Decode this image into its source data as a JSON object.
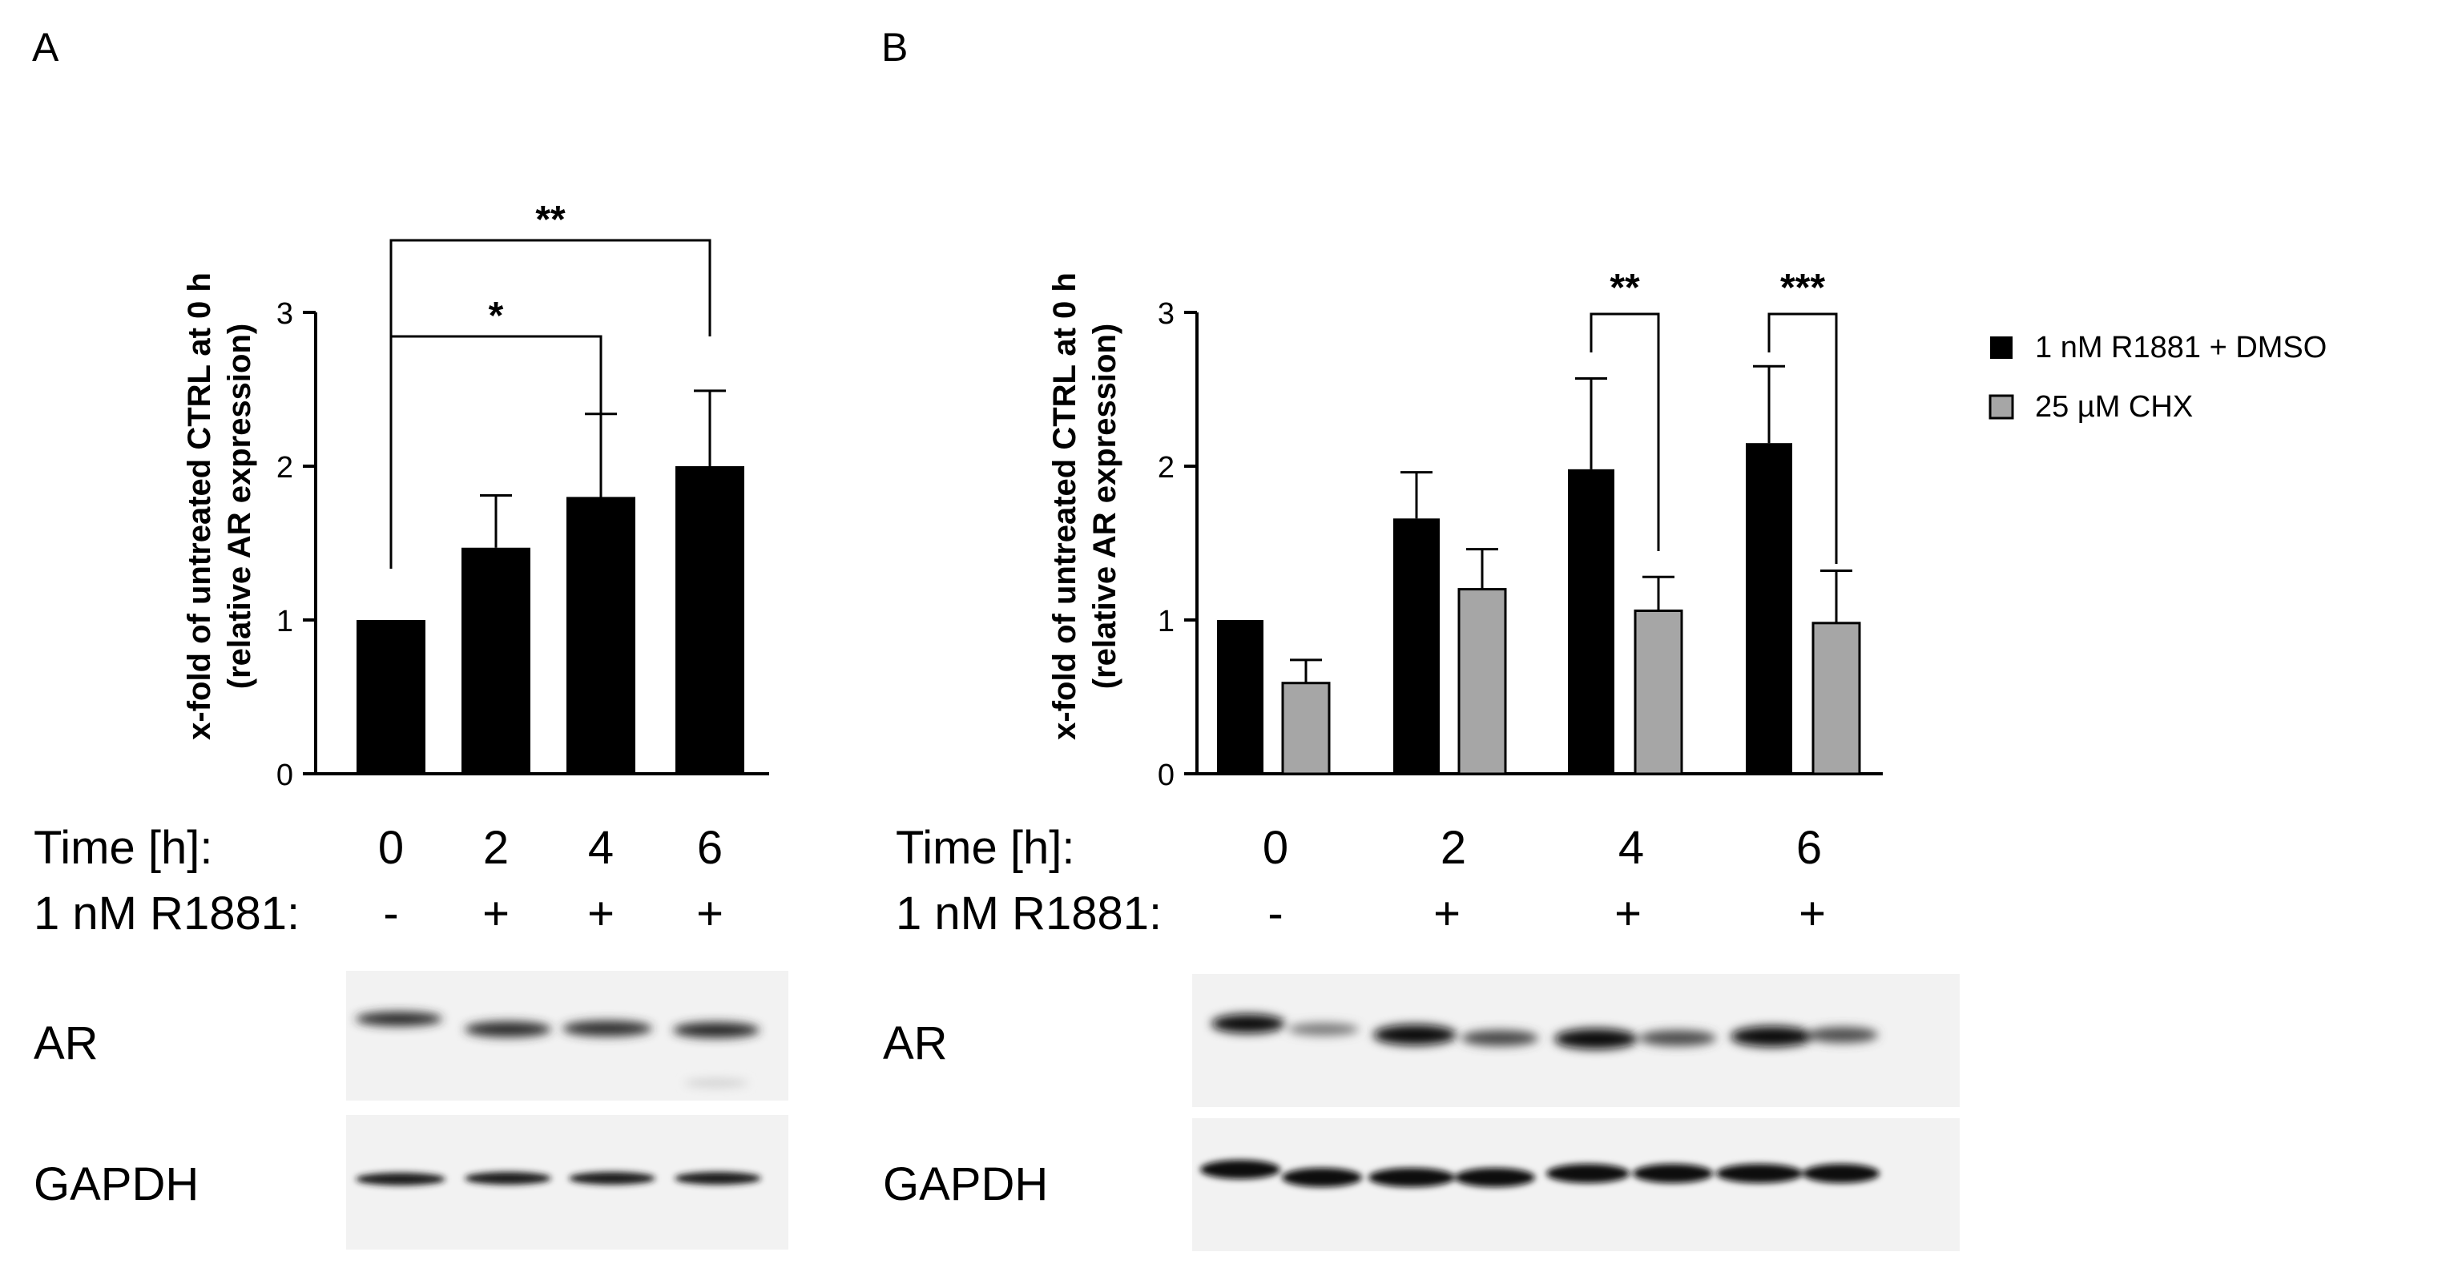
{
  "panel_labels": {
    "a": "A",
    "b": "B"
  },
  "colors": {
    "treated": "#000000",
    "chx": "#a6a6a6",
    "axis": "#000000"
  },
  "chart_data": [
    {
      "panel": "A",
      "type": "bar",
      "ylabel_line1": "x-fold of untreated CTRL at 0 h",
      "ylabel_line2": "(relative AR expression)",
      "ylim": [
        0,
        3
      ],
      "yticks": [
        "0",
        "1",
        "2",
        "3"
      ],
      "categories": [
        "0",
        "2",
        "4",
        "6"
      ],
      "series": [
        {
          "values": [
            1.0,
            1.47,
            1.8,
            2.0
          ],
          "errors": [
            0.0,
            0.34,
            0.54,
            0.49
          ]
        }
      ],
      "brackets": [
        {
          "from": 0,
          "to": 2,
          "label": "*"
        },
        {
          "from": 0,
          "to": 3,
          "label": "**"
        }
      ],
      "row_time_label": "Time [h]:",
      "row_treat_label": "1 nM R1881:",
      "treat_signs": [
        "-",
        "+",
        "+",
        "+"
      ],
      "blots": {
        "ar": "AR",
        "gapdh": "GAPDH"
      }
    },
    {
      "panel": "B",
      "type": "bar",
      "ylabel_line1": "x-fold of untreated CTRL at 0 h",
      "ylabel_line2": "(relative AR expression)",
      "ylim": [
        0,
        3
      ],
      "yticks": [
        "0",
        "1",
        "2",
        "3"
      ],
      "categories": [
        "0",
        "2",
        "4",
        "6"
      ],
      "series": [
        {
          "name": "1 nM R1881 + DMSO",
          "values": [
            1.0,
            1.66,
            1.98,
            2.15
          ],
          "errors": [
            0.0,
            0.3,
            0.59,
            0.5
          ]
        },
        {
          "name": "25 µM CHX",
          "values": [
            0.59,
            1.2,
            1.06,
            0.98
          ],
          "errors": [
            0.15,
            0.26,
            0.22,
            0.34
          ]
        }
      ],
      "brackets": [
        {
          "group": 2,
          "label": "**"
        },
        {
          "group": 3,
          "label": "***"
        }
      ],
      "row_time_label": "Time [h]:",
      "row_treat_label": "1 nM R1881:",
      "treat_signs": [
        "-",
        "+",
        "+",
        "+"
      ],
      "blots": {
        "ar": "AR",
        "gapdh": "GAPDH"
      }
    }
  ]
}
